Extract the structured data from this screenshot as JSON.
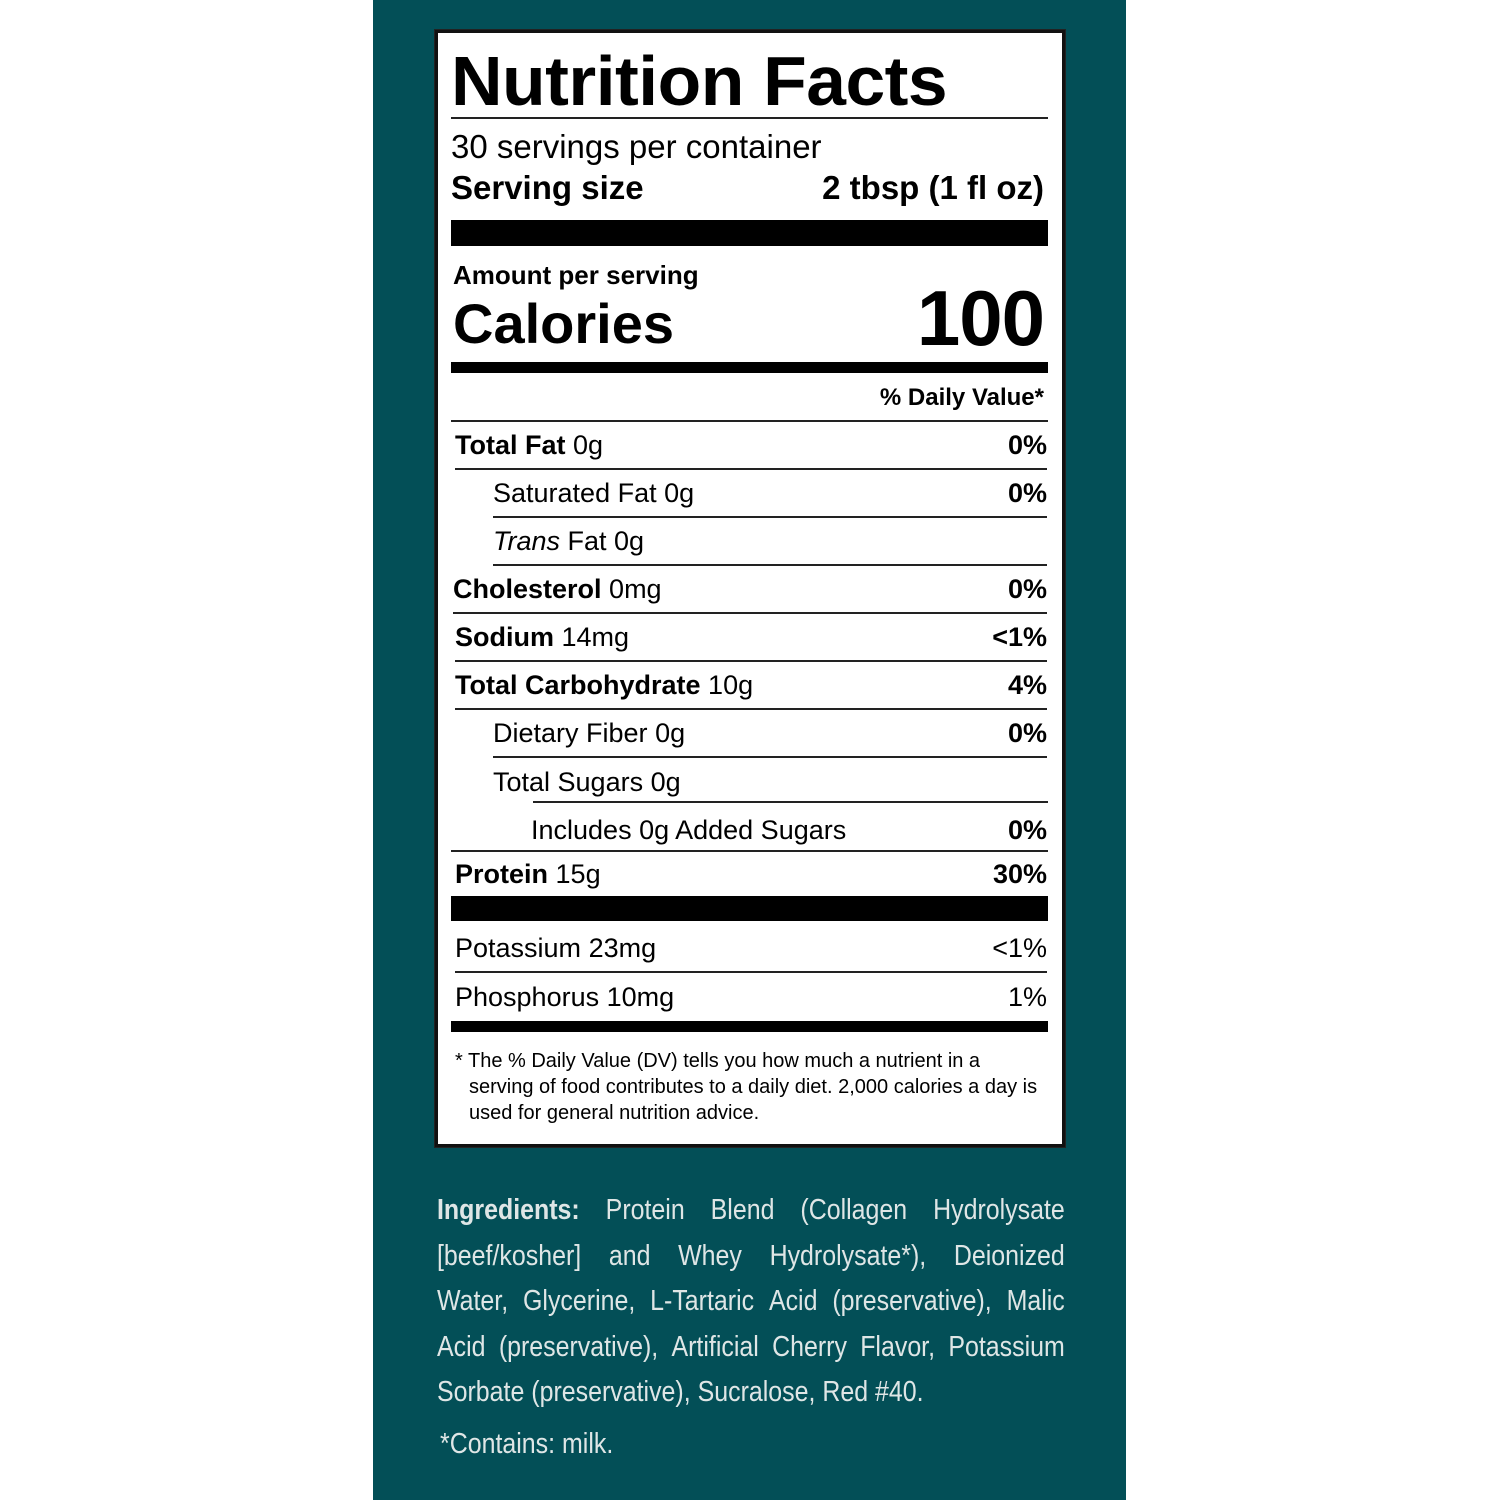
{
  "colors": {
    "panel": "#034f57",
    "ingredients_text": "#dfe6e6"
  },
  "label": {
    "title": "Nutrition Facts",
    "servings": "30 servings per container",
    "serving_size_label": "Serving size",
    "serving_size_value": "2 tbsp (1 fl oz)",
    "amount_per_serving": "Amount per serving",
    "calories_label": "Calories",
    "calories_value": "100",
    "dv_header": "% Daily Value*",
    "rows": [
      {
        "name": "Total Fat",
        "amount": "0g",
        "dv": "0%"
      },
      {
        "name": "Saturated Fat",
        "amount": "0g",
        "dv": "0%"
      },
      {
        "name": "Trans",
        "suffix": "Fat 0g",
        "dv": ""
      },
      {
        "name": "Cholesterol",
        "amount": "0mg",
        "dv": "0%"
      },
      {
        "name": "Sodium",
        "amount": "14mg",
        "dv": "<1%"
      },
      {
        "name": "Total Carbohydrate",
        "amount": "10g",
        "dv": "4%"
      },
      {
        "name": "Dietary Fiber",
        "amount": "0g",
        "dv": "0%"
      },
      {
        "name": "Total Sugars",
        "amount": "0g",
        "dv": ""
      },
      {
        "name": "Includes 0g Added Sugars",
        "amount": "",
        "dv": "0%"
      },
      {
        "name": "Protein",
        "amount": "15g",
        "dv": "30%"
      },
      {
        "name": "Potassium",
        "amount": "23mg",
        "dv": "<1%"
      },
      {
        "name": "Phosphorus",
        "amount": "10mg",
        "dv": "1%"
      }
    ],
    "footnote": "* The % Daily Value (DV) tells you how much a nutrient in a serving of food contributes to a daily diet. 2,000 calories a day is used for general nutrition advice."
  },
  "ingredients": {
    "label": "Ingredients:",
    "lines": [
      [
        "Protein",
        "Blend",
        "(Collagen",
        "Hydrolysate"
      ],
      [
        "[beef/kosher]",
        "and",
        "Whey",
        "Hydrolysate*),",
        "Deionized"
      ],
      [
        "Water,",
        "Glycerine,",
        "L-Tartaric",
        "Acid",
        "(preservative),",
        "Malic"
      ],
      [
        "Acid",
        "(preservative),",
        "Artificial",
        "Cherry",
        "Flavor,",
        "Potassium"
      ],
      [
        "Sorbate (preservative), Sucralose, Red #40."
      ]
    ],
    "contains": "*Contains: milk."
  }
}
